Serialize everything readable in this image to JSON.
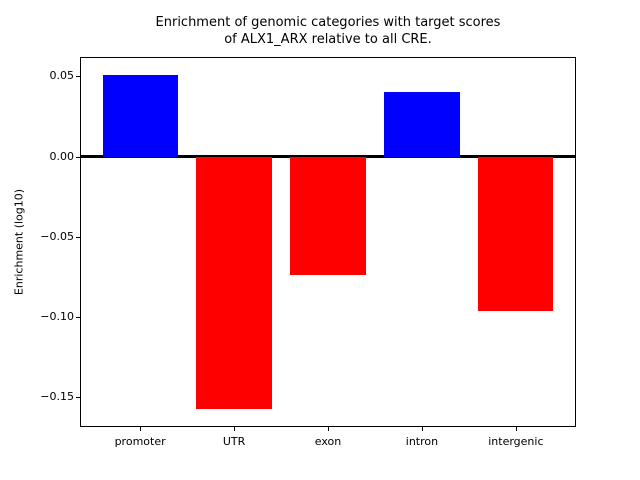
{
  "title": {
    "line1": "Enrichment of genomic categories with target scores",
    "line2": "of ALX1_ARX relative to all CRE."
  },
  "colors": {
    "positive_bar": "#0000ff",
    "negative_bar": "#ff0000",
    "axis": "#000000",
    "background": "#ffffff"
  },
  "chart_data": {
    "type": "bar",
    "title": "Enrichment of genomic categories with target scores of ALX1_ARX relative to all CRE.",
    "xlabel": "",
    "ylabel": "Enrichment (log10)",
    "categories": [
      "promoter",
      "UTR",
      "exon",
      "intron",
      "intergenic"
    ],
    "values": [
      0.051,
      -0.157,
      -0.074,
      0.04,
      -0.096
    ],
    "bar_colors": [
      "#0000ff",
      "#ff0000",
      "#ff0000",
      "#0000ff",
      "#ff0000"
    ],
    "yticks": [
      0.05,
      0.0,
      -0.05,
      -0.1,
      -0.15
    ],
    "ytick_labels": [
      "0.05",
      "0.00",
      "−0.05",
      "−0.10",
      "−0.15"
    ],
    "ylim": [
      -0.1685,
      0.062
    ],
    "xlim": [
      -0.64,
      4.64
    ],
    "bar_width": 0.8,
    "grid": false,
    "legend": null,
    "zero_line": true
  }
}
